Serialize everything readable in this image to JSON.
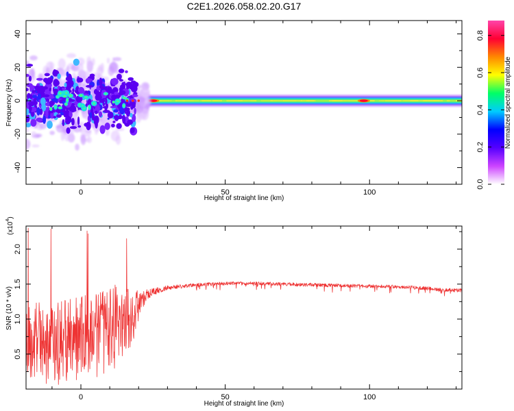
{
  "title": "C2E1.2026.058.02.20.G17",
  "chart_data": [
    {
      "type": "heatmap",
      "name": "spectrogram",
      "title": "C2E1.2026.058.02.20.G17",
      "xlabel": "Height of straight line (km)",
      "ylabel": "Frequency (Hz)",
      "xlim": [
        -19,
        132
      ],
      "ylim": [
        -50,
        48
      ],
      "xticks": [
        "0",
        "50",
        "100"
      ],
      "xtick_values": [
        0,
        50,
        100
      ],
      "yticks": [
        "-40",
        "-20",
        "0",
        "20",
        "40"
      ],
      "ytick_values": [
        -40,
        -20,
        0,
        20,
        40
      ],
      "noisy_region_km": [
        -19,
        17
      ],
      "transition_km": [
        12,
        30
      ],
      "carrier_band_hz": [
        -3.5,
        3.5
      ],
      "high_amplitude_spots_km": [
        25,
        98
      ],
      "colorbar": {
        "label": "Normalized spectral amplitude",
        "range": [
          0,
          0.88
        ],
        "ticks": [
          "0.0",
          "0.2",
          "0.4",
          "0.6",
          "0.8"
        ],
        "tick_values": [
          0,
          0.2,
          0.4,
          0.6,
          0.8
        ],
        "colors": [
          "#ffffff",
          "#cc44ff",
          "#5500ff",
          "#0000ff",
          "#00ccff",
          "#00ff66",
          "#ffff00",
          "#ff8800",
          "#ff0033",
          "#ff44aa"
        ]
      }
    },
    {
      "type": "line",
      "name": "snr",
      "xlabel": "Height of straight line (km)",
      "ylabel": "SNR (10 * v/v)",
      "ylabel_scale": "(x10",
      "ylabel_scale_exp": "4",
      "xlim": [
        -19,
        132
      ],
      "ylim": [
        0,
        2.33
      ],
      "xticks": [
        "0",
        "50",
        "100"
      ],
      "xtick_values": [
        0,
        50,
        100
      ],
      "yticks": [
        "0.5",
        "1.0",
        "1.5",
        "2.0"
      ],
      "ytick_values": [
        0.5,
        1.0,
        1.5,
        2.0
      ],
      "color": "#ee3333",
      "series": [
        {
          "name": "SNR",
          "x": [
            -19,
            -10,
            0,
            10,
            15,
            18,
            20,
            23,
            26,
            30,
            40,
            50,
            60,
            70,
            80,
            90,
            100,
            110,
            120,
            125,
            132
          ],
          "mean": [
            0.7,
            0.65,
            0.7,
            0.85,
            0.95,
            1.05,
            1.2,
            1.35,
            1.4,
            1.45,
            1.49,
            1.51,
            1.51,
            1.5,
            1.49,
            1.48,
            1.47,
            1.46,
            1.44,
            1.42,
            1.41
          ],
          "noise": [
            0.55,
            0.6,
            0.62,
            0.65,
            0.55,
            0.4,
            0.2,
            0.08,
            0.05,
            0.03,
            0.025,
            0.025,
            0.025,
            0.025,
            0.025,
            0.025,
            0.025,
            0.025,
            0.025,
            0.025,
            0.025
          ],
          "peak_values": [
            2.3,
            2.29,
            2.26,
            2.22,
            2.15,
            2.13,
            2.05,
            2.0
          ]
        }
      ]
    }
  ]
}
